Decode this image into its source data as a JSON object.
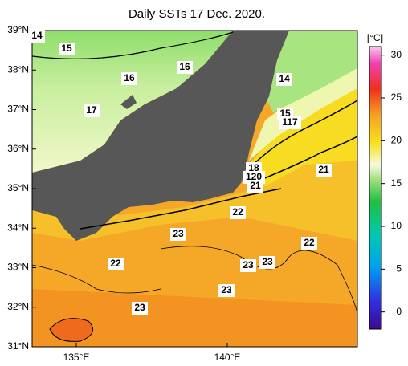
{
  "title": "Daily SSTs 17 Dec. 2020.",
  "unit": "[°C]",
  "lat_labels": [
    "39°N",
    "38°N",
    "37°N",
    "36°N",
    "35°N",
    "34°N",
    "33°N",
    "32°N",
    "31°N"
  ],
  "lon_labels": [
    "135°E",
    "140°E"
  ],
  "contour_labels": [
    "14",
    "15",
    "16",
    "16",
    "14",
    "17",
    "15",
    "117",
    "21",
    "18",
    "120",
    "21",
    "22",
    "23",
    "22",
    "22",
    "23",
    "23",
    "23",
    "23"
  ],
  "colorbar": {
    "range": [
      -2,
      31
    ],
    "ticks": [
      0,
      5,
      10,
      15,
      20,
      25,
      30
    ]
  }
}
